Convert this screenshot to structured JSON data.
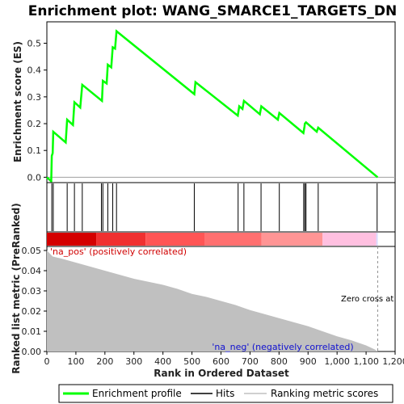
{
  "chart_data": {
    "type": "line",
    "title": "Enrichment plot: WANG_SMARCE1_TARGETS_DN",
    "panels": {
      "es": {
        "ylabel": "Enrichment score (ES)",
        "ylim": [
          -0.02,
          0.58
        ],
        "yticks": [
          "0.0",
          "0.1",
          "0.2",
          "0.3",
          "0.4",
          "0.5"
        ],
        "ytick_values": [
          0.0,
          0.1,
          0.2,
          0.3,
          0.4,
          0.5
        ]
      },
      "metric": {
        "ylabel": "Ranked list metric (PreRanked)",
        "ylim": [
          0,
          0.052
        ],
        "yticks": [
          "0.00",
          "0.01",
          "0.02",
          "0.03",
          "0.04",
          "0.05"
        ],
        "ytick_values": [
          0.0,
          0.01,
          0.02,
          0.03,
          0.04,
          0.05
        ],
        "pos_label": "'na_pos' (positively correlated)",
        "neg_label": "'na_neg' (negatively correlated)",
        "zero_cross_label": "Zero cross at",
        "zero_cross_rank": 1140
      }
    },
    "xlabel": "Rank in Ordered Dataset",
    "xlim": [
      0,
      1200
    ],
    "xticks": [
      "0",
      "100",
      "200",
      "300",
      "400",
      "500",
      "600",
      "700",
      "800",
      "900",
      "1,000",
      "1,100",
      "1,200"
    ],
    "xtick_values": [
      0,
      100,
      200,
      300,
      400,
      500,
      600,
      700,
      800,
      900,
      1000,
      1100,
      1200
    ],
    "series": [
      {
        "name": "Enrichment profile",
        "color": "#00ff00",
        "x": [
          0,
          15,
          17,
          20,
          22,
          65,
          70,
          90,
          95,
          115,
          122,
          190,
          193,
          206,
          210,
          222,
          227,
          235,
          240,
          508,
          512,
          658,
          663,
          674,
          679,
          734,
          739,
          796,
          801,
          884,
          888,
          889,
          893,
          930,
          935,
          1140
        ],
        "y": [
          0.0,
          -0.015,
          0.08,
          0.09,
          0.17,
          0.13,
          0.215,
          0.195,
          0.28,
          0.26,
          0.345,
          0.285,
          0.36,
          0.35,
          0.42,
          0.41,
          0.485,
          0.48,
          0.545,
          0.31,
          0.355,
          0.23,
          0.265,
          0.255,
          0.285,
          0.235,
          0.265,
          0.215,
          0.24,
          0.165,
          0.19,
          0.2,
          0.205,
          0.17,
          0.185,
          0.0
        ]
      },
      {
        "name": "Hits",
        "color": "#000000",
        "hits": [
          17,
          22,
          70,
          95,
          122,
          188,
          193,
          210,
          227,
          240,
          508,
          659,
          679,
          738,
          801,
          885,
          889,
          893,
          935,
          1138
        ]
      },
      {
        "name": "Ranking metric scores",
        "color": "#c0c0c0",
        "x": [
          0,
          20,
          50,
          100,
          150,
          200,
          250,
          300,
          350,
          400,
          450,
          500,
          550,
          600,
          650,
          700,
          750,
          800,
          850,
          900,
          950,
          1000,
          1050,
          1100,
          1130,
          1140
        ],
        "y": [
          0.05,
          0.047,
          0.046,
          0.044,
          0.042,
          0.04,
          0.038,
          0.036,
          0.0345,
          0.033,
          0.031,
          0.0285,
          0.027,
          0.025,
          0.023,
          0.0205,
          0.0185,
          0.0165,
          0.0145,
          0.0125,
          0.01,
          0.0075,
          0.0055,
          0.003,
          0.001,
          0.0
        ]
      }
    ],
    "heatmap_segments": [
      {
        "from": 0,
        "to": 170,
        "color": "#d40000"
      },
      {
        "from": 170,
        "to": 340,
        "color": "#f03030"
      },
      {
        "from": 340,
        "to": 545,
        "color": "#ff5555"
      },
      {
        "from": 545,
        "to": 740,
        "color": "#ff7070"
      },
      {
        "from": 740,
        "to": 950,
        "color": "#ff9595"
      },
      {
        "from": 950,
        "to": 1135,
        "color": "#ffc0e0"
      },
      {
        "from": 1135,
        "to": 1140,
        "color": "#d8d8ff"
      }
    ],
    "legend": {
      "placement": "bottom",
      "entries": [
        "Enrichment profile",
        "Hits",
        "Ranking metric scores"
      ]
    }
  }
}
